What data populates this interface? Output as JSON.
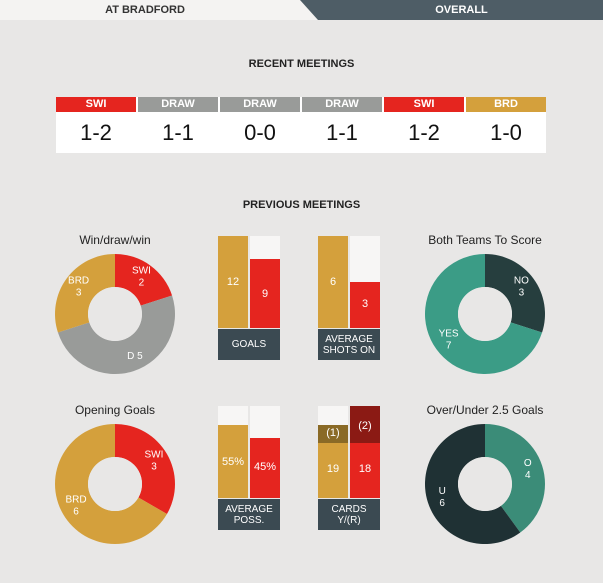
{
  "tabs": {
    "left": "AT BRADFORD",
    "right": "OVERALL"
  },
  "colors": {
    "swi": "#e5251f",
    "brd": "#d4a03c",
    "draw": "#999b99",
    "dark": "#3b4a52",
    "teal": "#3b9c86",
    "dark_teal": "#263e3e",
    "dark_red": "#8b1a14",
    "dark_gold": "#8a6a26"
  },
  "recent": {
    "title": "RECENT MEETINGS",
    "matches": [
      {
        "badge": "SWI",
        "score": "1-2",
        "color": "#e5251f"
      },
      {
        "badge": "DRAW",
        "score": "1-1",
        "color": "#999b99"
      },
      {
        "badge": "DRAW",
        "score": "0-0",
        "color": "#999b99"
      },
      {
        "badge": "DRAW",
        "score": "1-1",
        "color": "#999b99"
      },
      {
        "badge": "SWI",
        "score": "1-2",
        "color": "#e5251f"
      },
      {
        "badge": "BRD",
        "score": "1-0",
        "color": "#d4a03c"
      }
    ]
  },
  "previous": {
    "title": "PREVIOUS MEETINGS"
  },
  "wdw": {
    "title": "Win/draw/win",
    "segments": [
      {
        "label": "SWI",
        "value": 2,
        "color": "#e5251f"
      },
      {
        "label": "D",
        "value": 5,
        "color": "#999b99"
      },
      {
        "label": "BRD",
        "value": 3,
        "color": "#d4a03c"
      }
    ],
    "d_label": "D 5"
  },
  "goals": {
    "caption": "GOALS",
    "brd": 12,
    "swi": 9
  },
  "shots": {
    "caption_line1": "AVERAGE",
    "caption_line2": "SHOTS ON",
    "brd": 6,
    "swi": 3
  },
  "btts": {
    "title": "Both Teams To Score",
    "segments": [
      {
        "label": "NO",
        "value": 3,
        "color": "#263e3e"
      },
      {
        "label": "YES",
        "value": 7,
        "color": "#3b9c86"
      }
    ]
  },
  "opening": {
    "title": "Opening Goals",
    "segments": [
      {
        "label": "SWI",
        "value": 3,
        "color": "#e5251f"
      },
      {
        "label": "BRD",
        "value": 6,
        "color": "#d4a03c"
      }
    ]
  },
  "possession": {
    "caption_line1": "AVERAGE",
    "caption_line2": "POSS.",
    "brd": "55%",
    "swi": "45%",
    "brd_value": 55,
    "swi_value": 45
  },
  "cards": {
    "caption_line1": "CARDS",
    "caption_line2": "Y/(R)",
    "brd_yellow": "19",
    "brd_red": "(1)",
    "swi_yellow": "18",
    "swi_red": "(2)"
  },
  "overunder": {
    "title": "Over/Under 2.5 Goals",
    "segments": [
      {
        "label": "O",
        "value": 4,
        "color": "#3b8c78"
      },
      {
        "label": "U",
        "value": 6,
        "color": "#1f3134"
      }
    ]
  }
}
